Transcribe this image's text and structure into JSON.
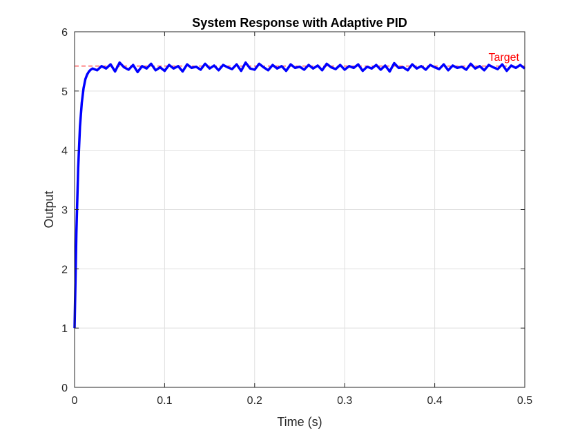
{
  "chart_data": {
    "type": "line",
    "title": "System Response with Adaptive PID",
    "xlabel": "Time (s)",
    "ylabel": "Output",
    "xlim": [
      0,
      0.5
    ],
    "ylim": [
      0,
      6
    ],
    "xticks": [
      0,
      0.1,
      0.2,
      0.3,
      0.4,
      0.5
    ],
    "xtick_labels": [
      "0",
      "0.1",
      "0.2",
      "0.3",
      "0.4",
      "0.5"
    ],
    "yticks": [
      0,
      1,
      2,
      3,
      4,
      5,
      6
    ],
    "ytick_labels": [
      "0",
      "1",
      "2",
      "3",
      "4",
      "5",
      "6"
    ],
    "grid": true,
    "target": {
      "value": 5.42,
      "label": "Target",
      "color": "#ff0000",
      "style": "dashed"
    },
    "series": [
      {
        "color": "#0000ff",
        "x": [
          0.0,
          0.002,
          0.004,
          0.006,
          0.008,
          0.01,
          0.012,
          0.014,
          0.016,
          0.018,
          0.02,
          0.025,
          0.03,
          0.035,
          0.04,
          0.045,
          0.05,
          0.055,
          0.06,
          0.065,
          0.07,
          0.075,
          0.08,
          0.085,
          0.09,
          0.095,
          0.1,
          0.105,
          0.11,
          0.115,
          0.12,
          0.125,
          0.13,
          0.135,
          0.14,
          0.145,
          0.15,
          0.155,
          0.16,
          0.165,
          0.17,
          0.175,
          0.18,
          0.185,
          0.19,
          0.195,
          0.2,
          0.205,
          0.21,
          0.215,
          0.22,
          0.225,
          0.23,
          0.235,
          0.24,
          0.245,
          0.25,
          0.255,
          0.26,
          0.265,
          0.27,
          0.275,
          0.28,
          0.285,
          0.29,
          0.295,
          0.3,
          0.305,
          0.31,
          0.315,
          0.32,
          0.325,
          0.33,
          0.335,
          0.34,
          0.345,
          0.35,
          0.355,
          0.36,
          0.365,
          0.37,
          0.375,
          0.38,
          0.385,
          0.39,
          0.395,
          0.4,
          0.405,
          0.41,
          0.415,
          0.42,
          0.425,
          0.43,
          0.435,
          0.44,
          0.445,
          0.45,
          0.455,
          0.46,
          0.465,
          0.47,
          0.475,
          0.48,
          0.485,
          0.49,
          0.495,
          0.5
        ],
        "y": [
          1.0,
          2.6,
          3.7,
          4.4,
          4.8,
          5.05,
          5.2,
          5.28,
          5.33,
          5.36,
          5.38,
          5.35,
          5.42,
          5.38,
          5.45,
          5.33,
          5.48,
          5.4,
          5.36,
          5.44,
          5.32,
          5.42,
          5.38,
          5.46,
          5.35,
          5.4,
          5.34,
          5.44,
          5.38,
          5.42,
          5.33,
          5.45,
          5.39,
          5.41,
          5.36,
          5.46,
          5.38,
          5.43,
          5.35,
          5.44,
          5.4,
          5.37,
          5.45,
          5.34,
          5.48,
          5.38,
          5.36,
          5.46,
          5.4,
          5.35,
          5.44,
          5.38,
          5.42,
          5.34,
          5.45,
          5.39,
          5.41,
          5.36,
          5.44,
          5.38,
          5.43,
          5.35,
          5.46,
          5.4,
          5.37,
          5.44,
          5.36,
          5.42,
          5.39,
          5.45,
          5.34,
          5.41,
          5.38,
          5.44,
          5.36,
          5.43,
          5.33,
          5.47,
          5.39,
          5.4,
          5.35,
          5.45,
          5.38,
          5.42,
          5.36,
          5.44,
          5.4,
          5.37,
          5.45,
          5.35,
          5.43,
          5.39,
          5.41,
          5.36,
          5.46,
          5.38,
          5.42,
          5.35,
          5.44,
          5.4,
          5.37,
          5.45,
          5.34,
          5.43,
          5.39,
          5.44,
          5.38
        ]
      }
    ]
  }
}
